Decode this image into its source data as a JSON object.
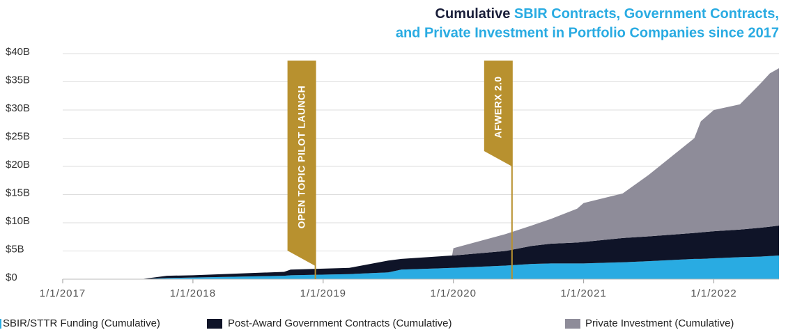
{
  "chart_data": {
    "type": "stacked_area",
    "title_parts": [
      "Cumulative",
      "SBIR Contracts, Government Contracts,",
      "and Private Investment in Portfolio Companies since 2017"
    ],
    "x": [
      2017.6,
      2017.8,
      2018.0,
      2018.7,
      2018.75,
      2019.2,
      2019.5,
      2019.6,
      2019.99,
      2020.0,
      2020.4,
      2020.6,
      2020.75,
      2020.95,
      2021.0,
      2021.3,
      2021.5,
      2021.85,
      2021.9,
      2022.0,
      2022.2,
      2022.35,
      2022.43,
      2022.5
    ],
    "series": [
      {
        "name": "SBIR/STTR Funding (Cumulative)",
        "color": "#29abe2",
        "values": [
          0,
          0.2,
          0.3,
          0.6,
          0.7,
          0.9,
          1.2,
          1.7,
          2.0,
          2.0,
          2.4,
          2.7,
          2.8,
          2.8,
          2.8,
          3.0,
          3.2,
          3.6,
          3.6,
          3.7,
          3.9,
          4.0,
          4.1,
          4.2
        ]
      },
      {
        "name": "Post-Award Government Contracts (Cumulative)",
        "color": "#0f1428",
        "values": [
          0,
          0.4,
          0.4,
          0.7,
          1.0,
          1.1,
          2.1,
          1.9,
          2.2,
          2.2,
          2.6,
          3.2,
          3.5,
          3.7,
          3.8,
          4.3,
          4.4,
          4.6,
          4.7,
          4.8,
          4.9,
          5.1,
          5.2,
          5.3
        ]
      },
      {
        "name": "Private Investment (Cumulative)",
        "color": "#8e8c99",
        "values": [
          0,
          0,
          0,
          0,
          0,
          0,
          0,
          0,
          0,
          1.3,
          3.0,
          3.6,
          4.4,
          6.0,
          6.9,
          7.9,
          10.9,
          16.8,
          19.7,
          21.5,
          22.2,
          25.4,
          27.2,
          27.9
        ]
      }
    ],
    "xlim": [
      2017,
      2022.5
    ],
    "xticks": [
      {
        "value": 2017,
        "label": "1/1/2017"
      },
      {
        "value": 2018,
        "label": "1/1/2018"
      },
      {
        "value": 2019,
        "label": "1/1/2019"
      },
      {
        "value": 2020,
        "label": "1/1/2020"
      },
      {
        "value": 2021,
        "label": "1/1/2021"
      },
      {
        "value": 2022,
        "label": "1/1/2022"
      }
    ],
    "ylim": [
      0,
      40
    ],
    "yticks": [
      {
        "value": 0,
        "label": "$0"
      },
      {
        "value": 5,
        "label": "$5B"
      },
      {
        "value": 10,
        "label": "$10B"
      },
      {
        "value": 15,
        "label": "$15B"
      },
      {
        "value": 20,
        "label": "$20B"
      },
      {
        "value": 25,
        "label": "$25B"
      },
      {
        "value": 30,
        "label": "$30B"
      },
      {
        "value": 35,
        "label": "$35B"
      },
      {
        "value": 40,
        "label": "$40B"
      }
    ],
    "grid": true,
    "annotations": [
      {
        "text": "OPEN TOPIC PILOT LAUNCH",
        "x": 2018.94
      },
      {
        "text": "AFWERX 2.0",
        "x": 2020.45
      }
    ],
    "annotation_color": "#b8912f"
  }
}
